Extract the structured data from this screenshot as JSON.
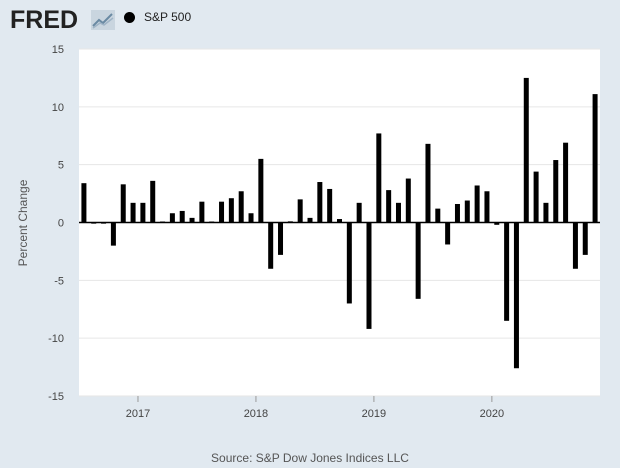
{
  "brand": {
    "logo_text": "FRED"
  },
  "legend": {
    "label": "S&P 500",
    "color": "#000000"
  },
  "source": "Source: S&P Dow Jones Indices LLC",
  "chart_data": {
    "type": "bar",
    "ylabel": "Percent Change",
    "ylim": [
      -15,
      15
    ],
    "yticks": [
      -15,
      -10,
      -5,
      0,
      5,
      10,
      15
    ],
    "xlim": [
      "2016-07",
      "2020-12"
    ],
    "xticks": [
      "2017",
      "2018",
      "2019",
      "2020"
    ],
    "xtick_dates": [
      "2017-01",
      "2018-01",
      "2019-01",
      "2020-01"
    ],
    "grid": "horizontal",
    "bar_color": "#000000",
    "series": [
      {
        "name": "S&P 500",
        "x": [
          "2016-07",
          "2016-08",
          "2016-09",
          "2016-10",
          "2016-11",
          "2016-12",
          "2017-01",
          "2017-02",
          "2017-03",
          "2017-04",
          "2017-05",
          "2017-06",
          "2017-07",
          "2017-08",
          "2017-09",
          "2017-10",
          "2017-11",
          "2017-12",
          "2018-01",
          "2018-02",
          "2018-03",
          "2018-04",
          "2018-05",
          "2018-06",
          "2018-07",
          "2018-08",
          "2018-09",
          "2018-10",
          "2018-11",
          "2018-12",
          "2019-01",
          "2019-02",
          "2019-03",
          "2019-04",
          "2019-05",
          "2019-06",
          "2019-07",
          "2019-08",
          "2019-09",
          "2019-10",
          "2019-11",
          "2019-12",
          "2020-01",
          "2020-02",
          "2020-03",
          "2020-04",
          "2020-05",
          "2020-06",
          "2020-07",
          "2020-08",
          "2020-09",
          "2020-10",
          "2020-11"
        ],
        "values": [
          3.4,
          -0.1,
          -0.1,
          -2.0,
          3.3,
          1.7,
          1.7,
          3.6,
          0.0,
          0.8,
          1.0,
          0.4,
          1.8,
          0.0,
          1.8,
          2.1,
          2.7,
          0.8,
          5.5,
          -4.0,
          -2.8,
          0.1,
          2.0,
          0.4,
          3.5,
          2.9,
          0.3,
          -7.0,
          1.7,
          -9.2,
          7.7,
          2.8,
          1.7,
          3.8,
          -6.6,
          6.8,
          1.2,
          -1.9,
          1.6,
          1.9,
          3.2,
          2.7,
          -0.2,
          -8.5,
          -12.6,
          12.5,
          4.4,
          1.7,
          5.4,
          6.9,
          -4.0,
          -2.8,
          11.1
        ]
      }
    ]
  }
}
